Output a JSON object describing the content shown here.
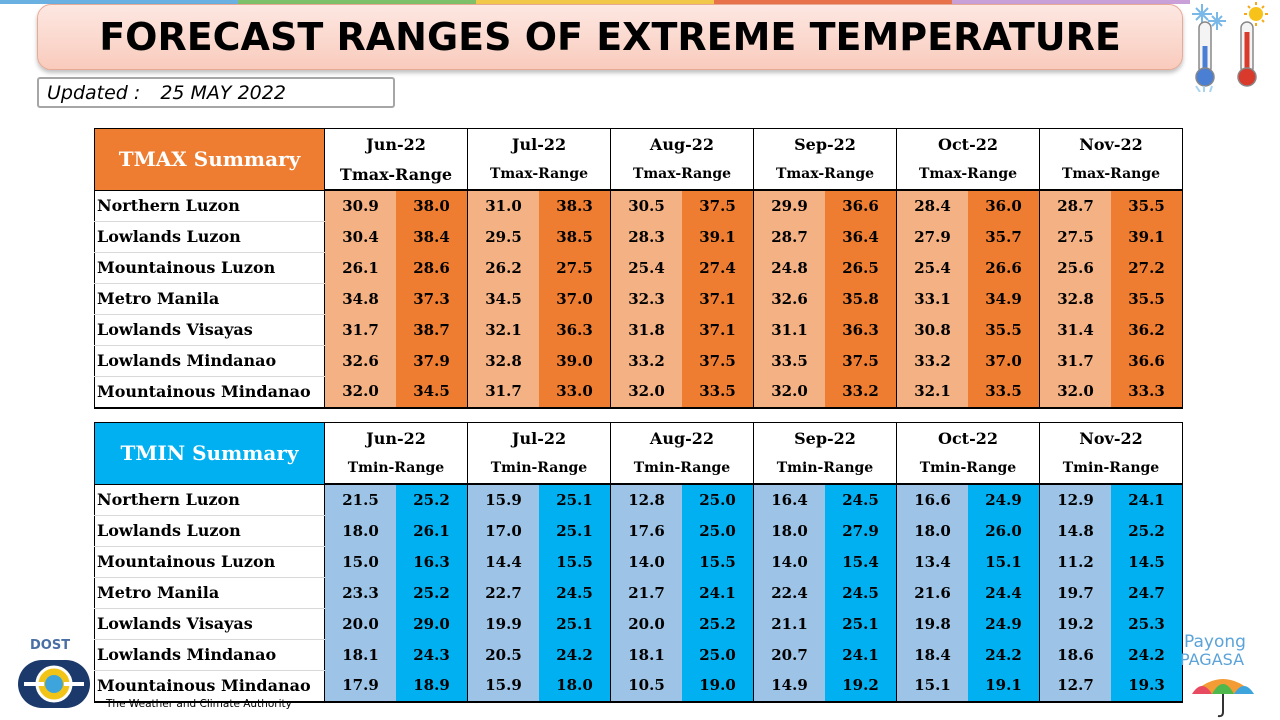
{
  "title": "FORECAST RANGES OF EXTREME TEMPERATURE",
  "updated": {
    "label": "Updated :",
    "date": "25 MAY 2022"
  },
  "months": [
    "Jun-22",
    "Jul-22",
    "Aug-22",
    "Sep-22",
    "Oct-22",
    "Nov-22"
  ],
  "colors": {
    "tmax_dark": "#ee7d31",
    "tmax_light": "#f4b183",
    "tmin_dark": "#00b0f0",
    "tmin_light": "#9dc3e6"
  },
  "tmax": {
    "label": "TMAX Summary",
    "range_label": "Tmax-Range",
    "rows": [
      {
        "region": "Northern Luzon",
        "values": [
          "30.9",
          "38.0",
          "31.0",
          "38.3",
          "30.5",
          "37.5",
          "29.9",
          "36.6",
          "28.4",
          "36.0",
          "28.7",
          "35.5"
        ]
      },
      {
        "region": "Lowlands Luzon",
        "values": [
          "30.4",
          "38.4",
          "29.5",
          "38.5",
          "28.3",
          "39.1",
          "28.7",
          "36.4",
          "27.9",
          "35.7",
          "27.5",
          "39.1"
        ]
      },
      {
        "region": "Mountainous Luzon",
        "values": [
          "26.1",
          "28.6",
          "26.2",
          "27.5",
          "25.4",
          "27.4",
          "24.8",
          "26.5",
          "25.4",
          "26.6",
          "25.6",
          "27.2"
        ]
      },
      {
        "region": "Metro Manila",
        "values": [
          "34.8",
          "37.3",
          "34.5",
          "37.0",
          "32.3",
          "37.1",
          "32.6",
          "35.8",
          "33.1",
          "34.9",
          "32.8",
          "35.5"
        ]
      },
      {
        "region": "Lowlands Visayas",
        "values": [
          "31.7",
          "38.7",
          "32.1",
          "36.3",
          "31.8",
          "37.1",
          "31.1",
          "36.3",
          "30.8",
          "35.5",
          "31.4",
          "36.2"
        ]
      },
      {
        "region": "Lowlands Mindanao",
        "values": [
          "32.6",
          "37.9",
          "32.8",
          "39.0",
          "33.2",
          "37.5",
          "33.5",
          "37.5",
          "33.2",
          "37.0",
          "31.7",
          "36.6"
        ]
      },
      {
        "region": "Mountainous Mindanao",
        "values": [
          "32.0",
          "34.5",
          "31.7",
          "33.0",
          "32.0",
          "33.5",
          "32.0",
          "33.2",
          "32.1",
          "33.5",
          "32.0",
          "33.3"
        ]
      }
    ]
  },
  "tmin": {
    "label": "TMIN Summary",
    "range_label": "Tmin-Range",
    "rows": [
      {
        "region": "Northern Luzon",
        "values": [
          "21.5",
          "25.2",
          "15.9",
          "25.1",
          "12.8",
          "25.0",
          "16.4",
          "24.5",
          "16.6",
          "24.9",
          "12.9",
          "24.1"
        ]
      },
      {
        "region": "Lowlands Luzon",
        "values": [
          "18.0",
          "26.1",
          "17.0",
          "25.1",
          "17.6",
          "25.0",
          "18.0",
          "27.9",
          "18.0",
          "26.0",
          "14.8",
          "25.2"
        ]
      },
      {
        "region": "Mountainous Luzon",
        "values": [
          "15.0",
          "16.3",
          "14.4",
          "15.5",
          "14.0",
          "15.5",
          "14.0",
          "15.4",
          "13.4",
          "15.1",
          "11.2",
          "14.5"
        ]
      },
      {
        "region": "Metro Manila",
        "values": [
          "23.3",
          "25.2",
          "22.7",
          "24.5",
          "21.7",
          "24.1",
          "22.4",
          "24.5",
          "21.6",
          "24.4",
          "19.7",
          "24.7"
        ]
      },
      {
        "region": "Lowlands Visayas",
        "values": [
          "20.0",
          "29.0",
          "19.9",
          "25.1",
          "20.0",
          "25.2",
          "21.1",
          "25.1",
          "19.8",
          "24.9",
          "19.2",
          "25.3"
        ]
      },
      {
        "region": "Lowlands Mindanao",
        "values": [
          "18.1",
          "24.3",
          "20.5",
          "24.2",
          "18.1",
          "25.0",
          "20.7",
          "24.1",
          "18.4",
          "24.2",
          "18.6",
          "24.2"
        ]
      },
      {
        "region": "Mountainous Mindanao",
        "values": [
          "17.9",
          "18.9",
          "15.9",
          "18.0",
          "10.5",
          "19.0",
          "14.9",
          "19.2",
          "15.1",
          "19.1",
          "12.7",
          "19.3"
        ]
      }
    ]
  },
  "footer": {
    "dost_label": "DOST",
    "tagline": "The Weather and Climate Authority",
    "payong_line1": "Payong",
    "payong_line2": "PAGASA"
  }
}
